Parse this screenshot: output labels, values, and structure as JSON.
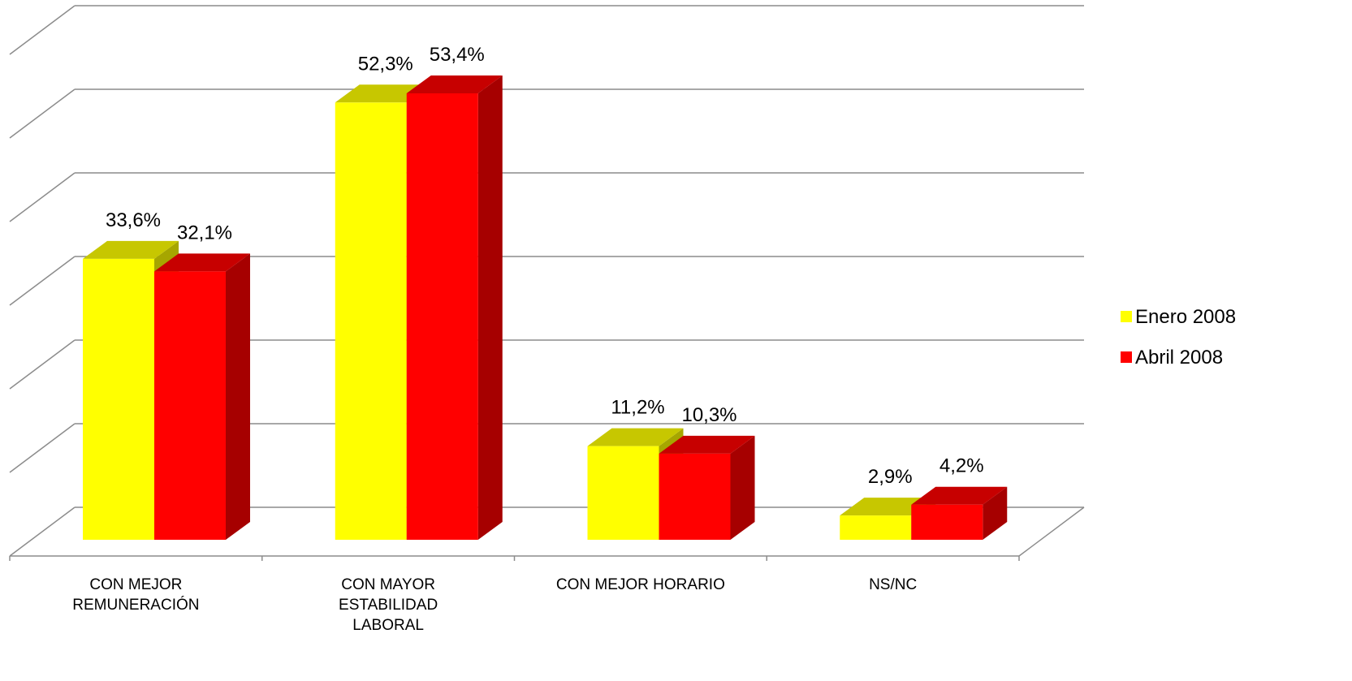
{
  "chart_data": {
    "type": "bar3d",
    "categories": [
      "CON MEJOR REMUNERACIÓN",
      "CON MAYOR ESTABILIDAD LABORAL",
      "CON MEJOR HORARIO",
      "NS/NC"
    ],
    "series": [
      {
        "name": "Enero 2008",
        "color": "#ffff00",
        "values": [
          33.6,
          52.3,
          11.2,
          2.9
        ],
        "value_labels": [
          "33,6%",
          "52,3%",
          "11,2%",
          "2,9%"
        ]
      },
      {
        "name": "Abril 2008",
        "color": "#ff0000",
        "values": [
          32.1,
          53.4,
          10.3,
          4.2
        ],
        "value_labels": [
          "32,1%",
          "53,4%",
          "10,3%",
          "4,2%"
        ]
      }
    ],
    "ylim": [
      0,
      60
    ],
    "yticks": [
      0,
      10,
      20,
      30,
      40,
      50,
      60
    ],
    "grid": true,
    "legend": "right"
  }
}
